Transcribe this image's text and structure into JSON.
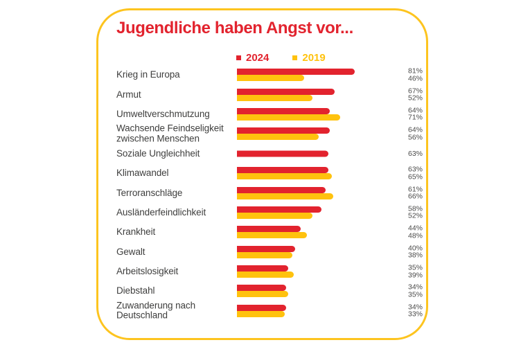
{
  "page": {
    "background": "#ffffff"
  },
  "card": {
    "border_color": "#FDC41F",
    "background": "#ffffff"
  },
  "legend": {
    "items": [
      {
        "label": "2024",
        "color": "#E2232E"
      },
      {
        "label": "2019",
        "color": "#FFC20E"
      }
    ]
  },
  "chart_data": {
    "type": "bar",
    "orientation": "horizontal",
    "title": "Jugendliche haben Angst vor...",
    "title_color": "#E2232E",
    "value_suffix": "%",
    "xlim": [
      0,
      100
    ],
    "grid": false,
    "legend_position": "top",
    "value_labels_position": "right",
    "categories": [
      "Krieg in Europa",
      "Armut",
      "Umweltverschmutzung",
      "Wachsende Feindseligkeit zwischen Menschen",
      "Soziale Ungleichheit",
      "Klimawandel",
      "Terroranschläge",
      "Ausländerfeindlichkeit",
      "Krankheit",
      "Gewalt",
      "Arbeitslosigkeit",
      "Diebstahl",
      "Zuwanderung nach Deutschland"
    ],
    "series": [
      {
        "name": "2024",
        "color": "#E2232E",
        "values": [
          81,
          67,
          64,
          64,
          63,
          63,
          61,
          58,
          44,
          40,
          35,
          34,
          34
        ]
      },
      {
        "name": "2019",
        "color": "#FFC20E",
        "values": [
          46,
          52,
          71,
          56,
          null,
          65,
          66,
          52,
          48,
          38,
          39,
          35,
          33
        ]
      }
    ]
  }
}
